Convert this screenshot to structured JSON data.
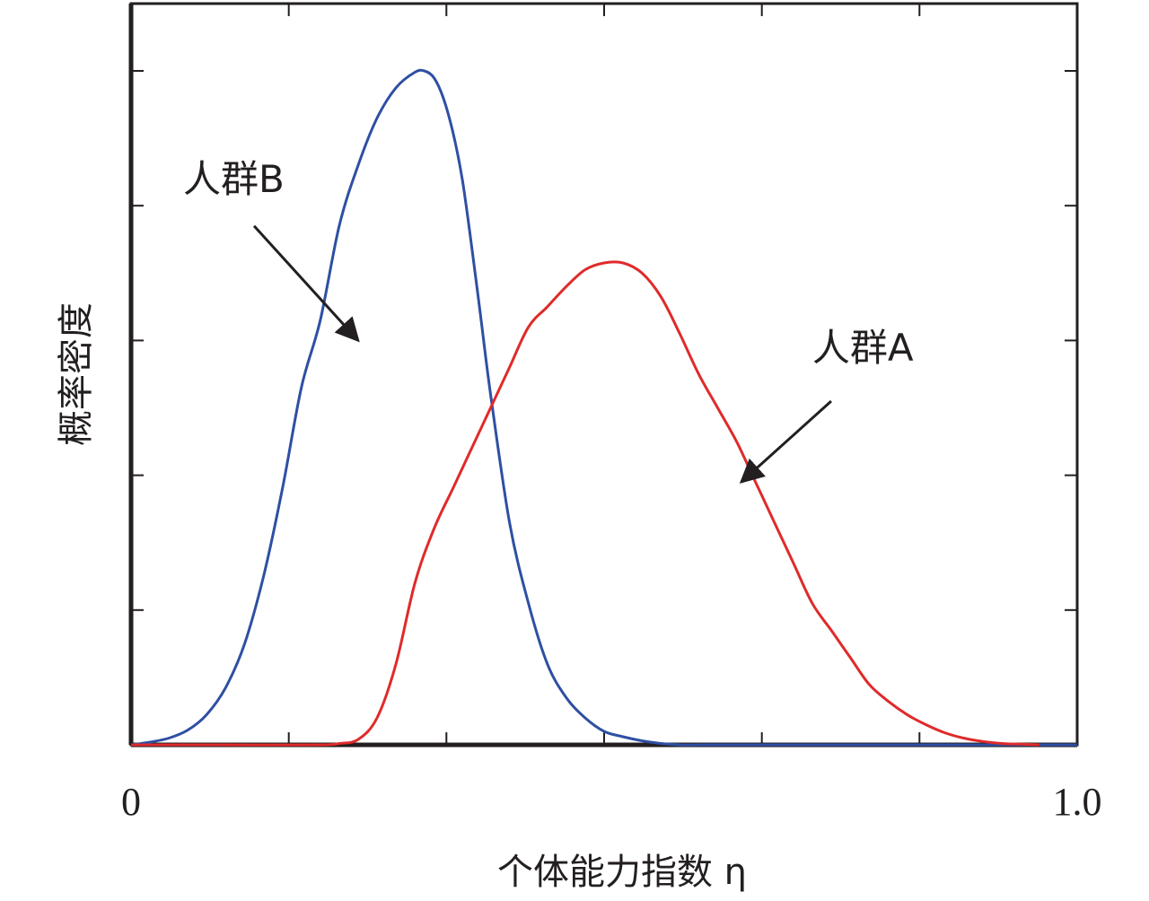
{
  "chart_data": {
    "type": "line",
    "title": "",
    "xlabel": "个体能力指数 η",
    "ylabel": "概率密度",
    "xlim": [
      0,
      1.0
    ],
    "ylim": [
      0,
      1.0
    ],
    "x_tick_labels": [
      {
        "value": 0,
        "label": "0"
      },
      {
        "value": 1.0,
        "label": "1.0"
      }
    ],
    "x_ticks": [
      0,
      0.1667,
      0.3333,
      0.5,
      0.6667,
      0.8333,
      1.0
    ],
    "y_ticks": [
      0,
      0.2,
      0.4,
      0.6,
      0.8,
      1.0
    ],
    "grid": false,
    "legend": "none",
    "series": [
      {
        "name": "人群B",
        "color": "#2e4fa3",
        "x": [
          0.0,
          0.02,
          0.04,
          0.06,
          0.08,
          0.1,
          0.12,
          0.14,
          0.16,
          0.18,
          0.2,
          0.22,
          0.24,
          0.26,
          0.28,
          0.3,
          0.31,
          0.32,
          0.33,
          0.34,
          0.35,
          0.36,
          0.37,
          0.38,
          0.4,
          0.42,
          0.44,
          0.46,
          0.48,
          0.5,
          0.52,
          0.54,
          0.56,
          0.58,
          0.6,
          0.62,
          0.64,
          0.66,
          1.0
        ],
        "y": [
          0.0,
          0.004,
          0.01,
          0.022,
          0.045,
          0.085,
          0.15,
          0.25,
          0.38,
          0.53,
          0.63,
          0.77,
          0.86,
          0.93,
          0.975,
          0.998,
          1.0,
          0.99,
          0.96,
          0.91,
          0.84,
          0.74,
          0.63,
          0.52,
          0.33,
          0.21,
          0.12,
          0.07,
          0.04,
          0.02,
          0.012,
          0.006,
          0.002,
          0.0,
          0.0,
          0.0,
          0.0,
          0.0,
          0.0
        ]
      },
      {
        "name": "人群A",
        "color": "#e02a2a",
        "x": [
          0.0,
          0.1,
          0.2,
          0.22,
          0.24,
          0.26,
          0.28,
          0.3,
          0.32,
          0.34,
          0.36,
          0.38,
          0.4,
          0.42,
          0.44,
          0.46,
          0.48,
          0.5,
          0.52,
          0.54,
          0.56,
          0.58,
          0.6,
          0.62,
          0.64,
          0.66,
          0.68,
          0.7,
          0.72,
          0.74,
          0.76,
          0.78,
          0.8,
          0.82,
          0.84,
          0.86,
          0.88,
          0.9,
          0.92,
          0.94,
          0.96
        ],
        "y": [
          0.0,
          0.0,
          0.0,
          0.002,
          0.008,
          0.04,
          0.12,
          0.24,
          0.32,
          0.38,
          0.44,
          0.5,
          0.56,
          0.62,
          0.65,
          0.68,
          0.705,
          0.715,
          0.715,
          0.7,
          0.665,
          0.61,
          0.55,
          0.5,
          0.45,
          0.39,
          0.33,
          0.27,
          0.21,
          0.17,
          0.13,
          0.09,
          0.065,
          0.045,
          0.03,
          0.018,
          0.01,
          0.005,
          0.002,
          0.001,
          0.0
        ]
      }
    ],
    "annotations": [
      {
        "text": "人群B",
        "label_x": 0.055,
        "label_y": 0.82,
        "arrow_from": [
          0.13,
          0.77
        ],
        "arrow_to": [
          0.24,
          0.6
        ]
      },
      {
        "text": "人群A",
        "label_x": 0.72,
        "label_y": 0.57,
        "arrow_from": [
          0.74,
          0.51
        ],
        "arrow_to": [
          0.645,
          0.39
        ]
      }
    ]
  }
}
